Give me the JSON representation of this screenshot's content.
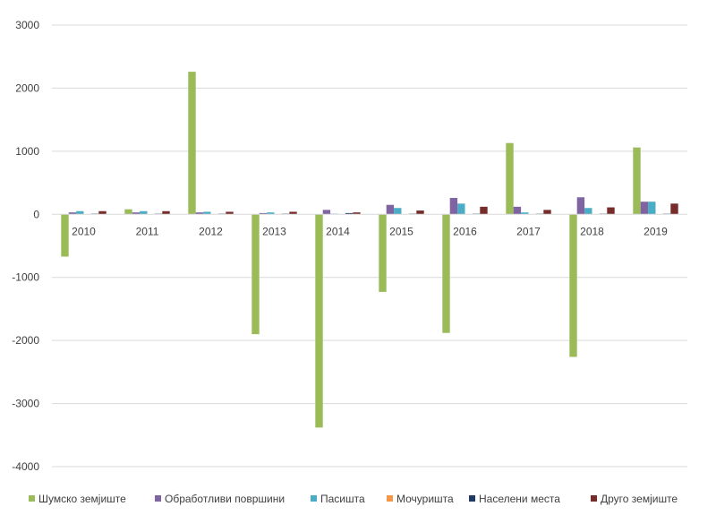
{
  "chart_data": {
    "type": "bar",
    "title": "",
    "xlabel": "",
    "ylabel": "",
    "ylim": [
      -4000,
      3000
    ],
    "yticks": [
      3000,
      2000,
      1000,
      0,
      -1000,
      -2000,
      -3000,
      -4000
    ],
    "grid": true,
    "legend_position": "bottom",
    "categories": [
      "2010",
      "2011",
      "2012",
      "2013",
      "2014",
      "2015",
      "2016",
      "2017",
      "2018",
      "2019"
    ],
    "series": [
      {
        "name": "Шумско земјиште",
        "color": "#9bbb59",
        "values": [
          -670,
          80,
          2260,
          -1900,
          -3380,
          -1230,
          -1880,
          1130,
          -2260,
          1060
        ]
      },
      {
        "name": "Обработливи површини",
        "color": "#8064a2",
        "values": [
          30,
          30,
          30,
          20,
          70,
          150,
          260,
          120,
          270,
          200
        ]
      },
      {
        "name": "Пасишта",
        "color": "#4bacc6",
        "values": [
          50,
          50,
          40,
          30,
          10,
          100,
          170,
          30,
          100,
          200
        ]
      },
      {
        "name": "Мочуришта",
        "color": "#f79646",
        "values": [
          0,
          0,
          0,
          0,
          0,
          0,
          0,
          0,
          0,
          0
        ]
      },
      {
        "name": "Населени места",
        "color": "#1f3864",
        "values": [
          10,
          10,
          10,
          10,
          20,
          10,
          10,
          10,
          10,
          10
        ]
      },
      {
        "name": "Друго земјиште",
        "color": "#772c2a",
        "values": [
          50,
          50,
          40,
          40,
          30,
          60,
          120,
          70,
          110,
          170
        ]
      }
    ]
  }
}
